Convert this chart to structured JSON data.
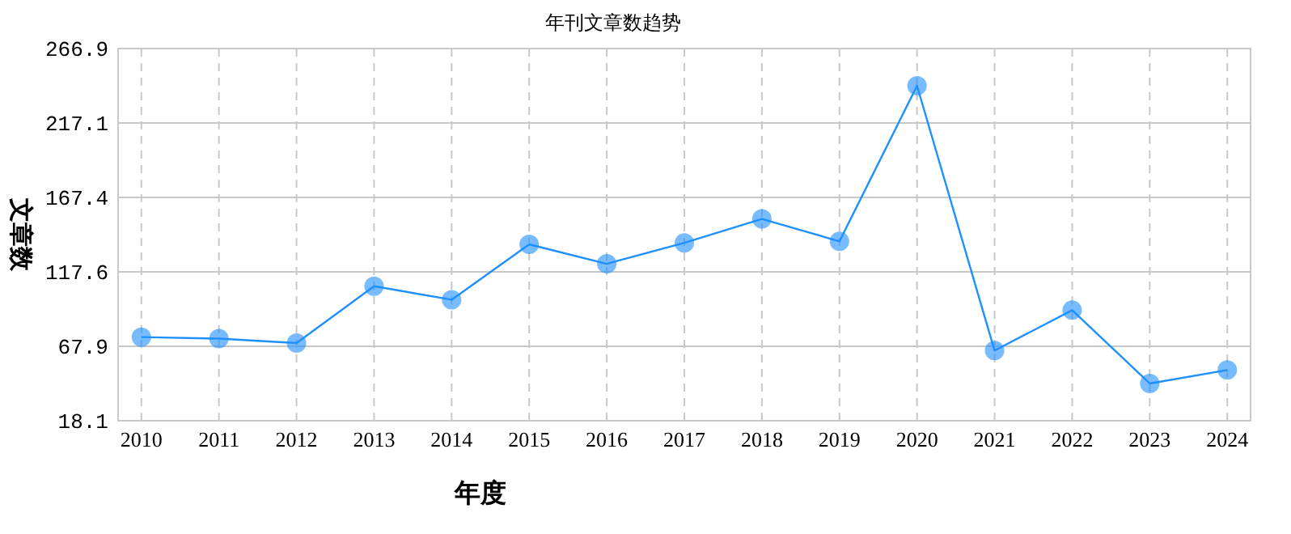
{
  "chart_data": {
    "type": "line",
    "title": "年刊文章数趋势",
    "xlabel": "年度",
    "ylabel": "文章数",
    "categories": [
      "2010",
      "2011",
      "2012",
      "2013",
      "2014",
      "2015",
      "2016",
      "2017",
      "2018",
      "2019",
      "2020",
      "2021",
      "2022",
      "2023",
      "2024"
    ],
    "series": [
      {
        "color": "#1e90ff",
        "values": [
          74,
          73,
          70,
          108,
          99,
          136,
          123,
          137,
          153,
          138,
          242,
          65,
          92,
          43,
          52
        ]
      }
    ],
    "ylim": [
      18.1,
      266.9
    ],
    "yticks": [
      18.1,
      67.9,
      117.6,
      167.4,
      217.1,
      266.9
    ],
    "grid": true,
    "marker": "circle",
    "line_style": "solid"
  }
}
